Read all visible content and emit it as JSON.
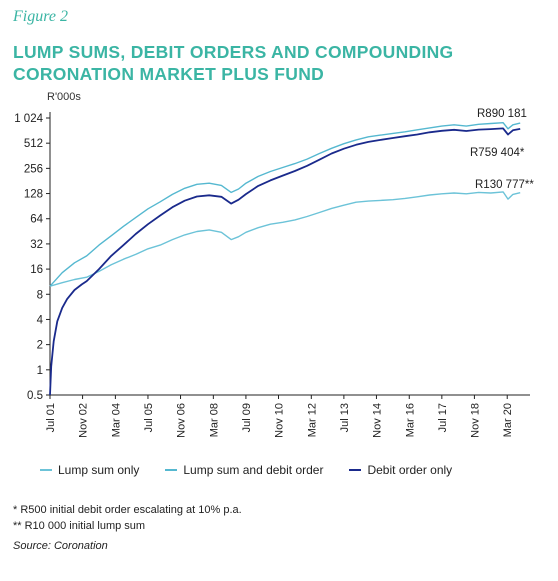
{
  "figure_label": "Figure 2",
  "title_line1": "LUMP SUMS, DEBIT ORDERS AND COMPOUNDING",
  "title_line2": "CORONATION MARKET PLUS FUND",
  "notes": [
    "*  R500 initial debit order escalating at 10% p.a.",
    "** R10 000 initial lump sum"
  ],
  "source": "Source: Coronation",
  "colors": {
    "title": "#3bb5a4",
    "lump_sum": "#6cc3d8",
    "lump_and_debit": "#55b8d0",
    "debit_only": "#1a2a8c"
  },
  "chart_data": {
    "type": "line",
    "ylabel": "R'000s",
    "yscale": "log2",
    "ylim": [
      0.5,
      1024
    ],
    "yticks": [
      0.5,
      1,
      2,
      4,
      8,
      16,
      32,
      64,
      128,
      256,
      512,
      1024
    ],
    "ytick_labels": [
      "0.5",
      "1",
      "2",
      "4",
      "8",
      "16",
      "32",
      "64",
      "128",
      "256",
      "512",
      "1 024"
    ],
    "xlim": [
      2001.5,
      2021.1
    ],
    "xticks": [
      2001.5,
      2002.83,
      2004.17,
      2005.5,
      2006.83,
      2008.17,
      2009.5,
      2010.83,
      2012.17,
      2013.5,
      2014.83,
      2016.17,
      2017.5,
      2018.83,
      2020.17
    ],
    "xtick_labels": [
      "Jul 01",
      "Nov 02",
      "Mar 04",
      "Jul 05",
      "Nov 06",
      "Mar 08",
      "Jul 09",
      "Nov 10",
      "Mar 12",
      "Jul 13",
      "Nov 14",
      "Mar 16",
      "Jul 17",
      "Nov 18",
      "Mar 20"
    ],
    "grid": false,
    "legend_position": "bottom",
    "series": [
      {
        "name": "Lump sum only",
        "end_label": "R130 777**",
        "x": [
          2001.5,
          2002.0,
          2002.5,
          2003.0,
          2003.5,
          2004.0,
          2004.5,
          2005.0,
          2005.5,
          2006.0,
          2006.5,
          2007.0,
          2007.5,
          2008.0,
          2008.5,
          2008.9,
          2009.2,
          2009.5,
          2010.0,
          2010.5,
          2011.0,
          2011.5,
          2012.0,
          2012.5,
          2013.0,
          2013.5,
          2014.0,
          2014.5,
          2015.0,
          2015.5,
          2016.0,
          2016.5,
          2017.0,
          2017.5,
          2018.0,
          2018.5,
          2019.0,
          2019.5,
          2020.0,
          2020.2,
          2020.4,
          2020.7
        ],
        "values": [
          10,
          11,
          12,
          12.8,
          15,
          18,
          21,
          24,
          28,
          31,
          36,
          41,
          45,
          47,
          44,
          36,
          39,
          44,
          50,
          55,
          58,
          62,
          68,
          76,
          85,
          93,
          101,
          104,
          106,
          108,
          112,
          117,
          123,
          127,
          130,
          127,
          132,
          130,
          134,
          110,
          125,
          131
        ]
      },
      {
        "name": "Lump sum and debit order",
        "end_label": "R890 181",
        "x": [
          2001.5,
          2002.0,
          2002.5,
          2003.0,
          2003.5,
          2004.0,
          2004.5,
          2005.0,
          2005.5,
          2006.0,
          2006.5,
          2007.0,
          2007.5,
          2008.0,
          2008.5,
          2008.9,
          2009.2,
          2009.5,
          2010.0,
          2010.5,
          2011.0,
          2011.5,
          2012.0,
          2012.5,
          2013.0,
          2013.5,
          2014.0,
          2014.5,
          2015.0,
          2015.5,
          2016.0,
          2016.5,
          2017.0,
          2017.5,
          2018.0,
          2018.5,
          2019.0,
          2019.5,
          2020.0,
          2020.2,
          2020.4,
          2020.7
        ],
        "values": [
          10,
          14.5,
          19,
          23,
          31,
          40,
          52,
          66,
          84,
          102,
          125,
          148,
          165,
          170,
          160,
          132,
          145,
          170,
          205,
          235,
          262,
          292,
          330,
          385,
          445,
          505,
          560,
          610,
          640,
          670,
          700,
          740,
          780,
          820,
          850,
          820,
          860,
          880,
          900,
          760,
          850,
          890
        ]
      },
      {
        "name": "Debit order only",
        "end_label": "R759 404*",
        "x": [
          2001.5,
          2001.55,
          2001.65,
          2001.8,
          2002.0,
          2002.2,
          2002.5,
          2002.8,
          2003.0,
          2003.5,
          2004.0,
          2004.5,
          2005.0,
          2005.5,
          2006.0,
          2006.5,
          2007.0,
          2007.5,
          2008.0,
          2008.5,
          2008.9,
          2009.2,
          2009.5,
          2010.0,
          2010.5,
          2011.0,
          2011.5,
          2012.0,
          2012.5,
          2013.0,
          2013.5,
          2014.0,
          2014.5,
          2015.0,
          2015.5,
          2016.0,
          2016.5,
          2017.0,
          2017.5,
          2018.0,
          2018.5,
          2019.0,
          2019.5,
          2020.0,
          2020.2,
          2020.4,
          2020.7
        ],
        "values": [
          0.5,
          1.1,
          2.2,
          3.8,
          5.5,
          7.0,
          9.0,
          10.5,
          11.5,
          16,
          23,
          31,
          42,
          55,
          70,
          88,
          105,
          118,
          122,
          117,
          97,
          108,
          126,
          158,
          184,
          210,
          238,
          275,
          325,
          385,
          440,
          490,
          530,
          560,
          590,
          620,
          650,
          690,
          720,
          740,
          715,
          745,
          755,
          770,
          650,
          730,
          759
        ]
      }
    ]
  }
}
